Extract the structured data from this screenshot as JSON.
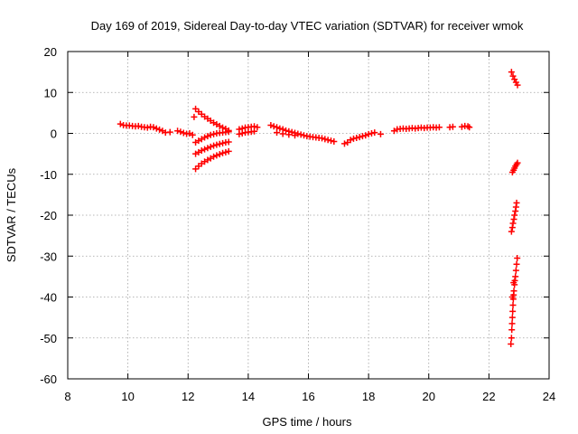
{
  "chart_data": {
    "type": "scatter",
    "title": "Day 169 of 2019, Sidereal Day-to-day VTEC variation (SDTVAR) for receiver wmok",
    "xlabel": "GPS time / hours",
    "ylabel": "SDTVAR / TECUs",
    "xlim": [
      8,
      24
    ],
    "ylim": [
      -60,
      20
    ],
    "x_ticks": [
      "8",
      "10",
      "12",
      "14",
      "16",
      "18",
      "20",
      "22",
      "24"
    ],
    "y_ticks": [
      "-60",
      "-50",
      "-40",
      "-30",
      "-20",
      "-10",
      "0",
      "10",
      "20"
    ],
    "grid": true,
    "marker": "plus",
    "color": "#ff0000",
    "series": [
      {
        "points": [
          [
            9.75,
            2.3
          ],
          [
            9.85,
            2.0
          ],
          [
            9.95,
            1.9
          ],
          [
            10.05,
            1.9
          ],
          [
            10.15,
            1.8
          ],
          [
            10.25,
            1.7
          ],
          [
            10.35,
            1.8
          ],
          [
            10.45,
            1.6
          ],
          [
            10.55,
            1.5
          ],
          [
            10.65,
            1.4
          ],
          [
            10.75,
            1.6
          ],
          [
            10.85,
            1.5
          ],
          [
            10.95,
            1.2
          ],
          [
            11.05,
            0.9
          ],
          [
            11.15,
            0.6
          ],
          [
            11.25,
            0.2
          ],
          [
            11.4,
            0.3
          ],
          [
            11.65,
            0.6
          ],
          [
            11.75,
            0.4
          ],
          [
            11.85,
            0.1
          ],
          [
            11.95,
            -0.1
          ],
          [
            12.05,
            0.0
          ],
          [
            12.15,
            -0.4
          ],
          [
            12.25,
            6.0
          ],
          [
            12.35,
            5.3
          ],
          [
            12.45,
            4.7
          ],
          [
            12.55,
            4.1
          ],
          [
            12.65,
            3.6
          ],
          [
            12.75,
            3.1
          ],
          [
            12.85,
            2.6
          ],
          [
            12.95,
            2.2
          ],
          [
            13.05,
            1.8
          ],
          [
            13.15,
            1.4
          ],
          [
            13.25,
            1.1
          ],
          [
            13.35,
            0.7
          ],
          [
            12.2,
            4.0
          ],
          [
            12.25,
            -2.2
          ],
          [
            12.35,
            -1.8
          ],
          [
            12.45,
            -1.4
          ],
          [
            12.55,
            -1.0
          ],
          [
            12.65,
            -0.7
          ],
          [
            12.75,
            -0.4
          ],
          [
            12.85,
            -0.2
          ],
          [
            12.95,
            0.0
          ],
          [
            13.05,
            0.1
          ],
          [
            13.15,
            0.2
          ],
          [
            13.25,
            0.3
          ],
          [
            13.35,
            0.4
          ],
          [
            12.25,
            -5.0
          ],
          [
            12.35,
            -4.6
          ],
          [
            12.45,
            -4.2
          ],
          [
            12.55,
            -3.9
          ],
          [
            12.65,
            -3.6
          ],
          [
            12.75,
            -3.3
          ],
          [
            12.85,
            -3.0
          ],
          [
            12.95,
            -2.8
          ],
          [
            13.05,
            -2.6
          ],
          [
            13.15,
            -2.4
          ],
          [
            13.25,
            -2.2
          ],
          [
            13.35,
            -2.1
          ],
          [
            12.25,
            -8.7
          ],
          [
            12.35,
            -8.0
          ],
          [
            12.45,
            -7.4
          ],
          [
            12.55,
            -6.9
          ],
          [
            12.65,
            -6.5
          ],
          [
            12.75,
            -6.1
          ],
          [
            12.85,
            -5.7
          ],
          [
            12.95,
            -5.4
          ],
          [
            13.05,
            -5.1
          ],
          [
            13.15,
            -4.8
          ],
          [
            13.25,
            -4.6
          ],
          [
            13.35,
            -4.4
          ],
          [
            13.7,
            1.0
          ],
          [
            13.8,
            1.2
          ],
          [
            13.9,
            1.4
          ],
          [
            14.0,
            1.5
          ],
          [
            14.1,
            1.6
          ],
          [
            14.2,
            1.7
          ],
          [
            14.3,
            1.5
          ],
          [
            13.7,
            -0.2
          ],
          [
            13.8,
            0.0
          ],
          [
            13.9,
            0.2
          ],
          [
            14.0,
            0.3
          ],
          [
            14.1,
            0.4
          ],
          [
            14.2,
            0.5
          ],
          [
            14.75,
            2.0
          ],
          [
            14.85,
            1.7
          ],
          [
            14.95,
            1.5
          ],
          [
            15.05,
            1.2
          ],
          [
            15.15,
            1.0
          ],
          [
            15.25,
            0.7
          ],
          [
            15.35,
            0.5
          ],
          [
            15.45,
            0.3
          ],
          [
            15.55,
            0.1
          ],
          [
            15.65,
            -0.1
          ],
          [
            15.75,
            -0.3
          ],
          [
            15.85,
            -0.5
          ],
          [
            15.95,
            -0.7
          ],
          [
            16.05,
            -0.8
          ],
          [
            16.15,
            -0.9
          ],
          [
            16.25,
            -1.0
          ],
          [
            16.35,
            -1.1
          ],
          [
            16.45,
            -1.2
          ],
          [
            16.55,
            -1.4
          ],
          [
            16.65,
            -1.6
          ],
          [
            16.75,
            -1.8
          ],
          [
            16.85,
            -2.0
          ],
          [
            14.95,
            0.2
          ],
          [
            15.15,
            -0.1
          ],
          [
            15.35,
            -0.3
          ],
          [
            15.55,
            -0.5
          ],
          [
            17.2,
            -2.5
          ],
          [
            17.3,
            -2.2
          ],
          [
            17.4,
            -1.6
          ],
          [
            17.5,
            -1.3
          ],
          [
            17.6,
            -1.1
          ],
          [
            17.7,
            -0.9
          ],
          [
            17.8,
            -0.7
          ],
          [
            17.9,
            -0.5
          ],
          [
            18.0,
            -0.2
          ],
          [
            18.1,
            0.0
          ],
          [
            18.2,
            0.2
          ],
          [
            18.4,
            -0.2
          ],
          [
            18.85,
            0.6
          ],
          [
            18.95,
            1.0
          ],
          [
            19.05,
            1.1
          ],
          [
            19.15,
            1.2
          ],
          [
            19.25,
            1.1
          ],
          [
            19.35,
            1.2
          ],
          [
            19.45,
            1.3
          ],
          [
            19.55,
            1.2
          ],
          [
            19.65,
            1.3
          ],
          [
            19.75,
            1.4
          ],
          [
            19.85,
            1.3
          ],
          [
            19.95,
            1.4
          ],
          [
            20.05,
            1.4
          ],
          [
            20.15,
            1.5
          ],
          [
            20.25,
            1.4
          ],
          [
            20.35,
            1.5
          ],
          [
            20.7,
            1.5
          ],
          [
            20.8,
            1.6
          ],
          [
            21.1,
            1.6
          ],
          [
            21.2,
            1.8
          ],
          [
            21.3,
            1.7
          ],
          [
            21.35,
            1.5
          ],
          [
            22.75,
            15.0
          ],
          [
            22.8,
            14.0
          ],
          [
            22.85,
            13.2
          ],
          [
            22.9,
            12.5
          ],
          [
            22.95,
            11.8
          ],
          [
            22.78,
            -9.5
          ],
          [
            22.82,
            -9.0
          ],
          [
            22.85,
            -8.5
          ],
          [
            22.88,
            -8.0
          ],
          [
            22.92,
            -7.6
          ],
          [
            22.95,
            -7.2
          ],
          [
            22.75,
            -24.0
          ],
          [
            22.78,
            -23.0
          ],
          [
            22.8,
            -22.0
          ],
          [
            22.83,
            -21.0
          ],
          [
            22.85,
            -20.0
          ],
          [
            22.88,
            -19.0
          ],
          [
            22.9,
            -18.0
          ],
          [
            22.92,
            -17.0
          ],
          [
            22.73,
            -51.5
          ],
          [
            22.75,
            -50.0
          ],
          [
            22.76,
            -48.0
          ],
          [
            22.77,
            -46.5
          ],
          [
            22.78,
            -45.0
          ],
          [
            22.79,
            -43.5
          ],
          [
            22.8,
            -42.0
          ],
          [
            22.81,
            -40.5
          ],
          [
            22.82,
            -39.5
          ],
          [
            22.83,
            -38.5
          ],
          [
            22.85,
            -37.0
          ],
          [
            22.86,
            -36.0
          ],
          [
            22.88,
            -35.0
          ],
          [
            22.9,
            -33.5
          ],
          [
            22.92,
            -32.0
          ],
          [
            22.94,
            -30.5
          ],
          [
            22.78,
            -40.0
          ],
          [
            22.82,
            -36.5
          ]
        ]
      }
    ]
  }
}
